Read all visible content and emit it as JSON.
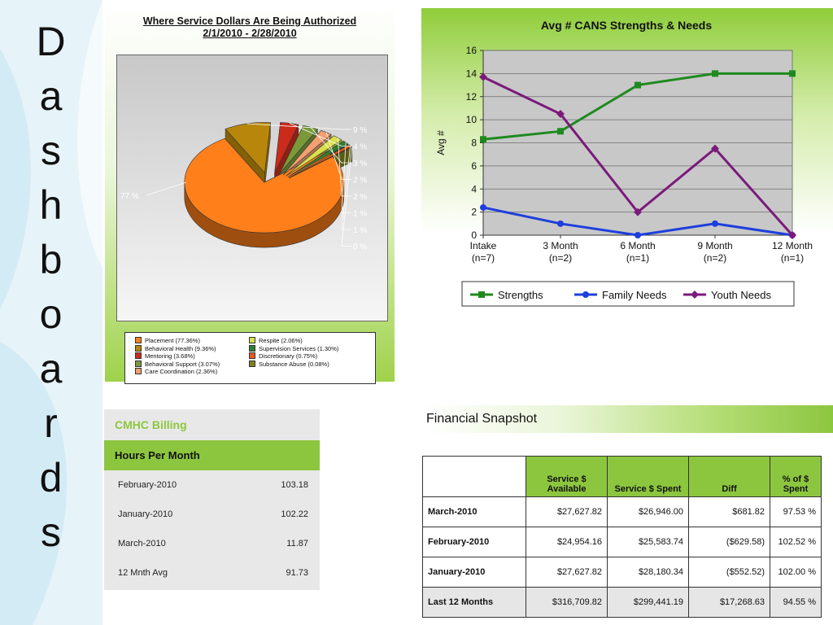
{
  "vertical_title": [
    "D",
    "a",
    "s",
    "h",
    "b",
    "o",
    "a",
    "r",
    "d",
    "s"
  ],
  "colors": {
    "accent_green": "#8cc63f",
    "strengths": "#1e8a1e",
    "family": "#1e3fdc",
    "youth": "#7b1a7b"
  },
  "chart_data": [
    {
      "type": "pie",
      "title_lines": [
        "Where Service Dollars Are Being Authorized",
        "2/1/2010 - 2/28/2010"
      ],
      "slices": [
        {
          "label": "Placement (77.36%)",
          "value": 77.36,
          "display": "77 %",
          "color": "#ff7f1a"
        },
        {
          "label": "Behavioral Health (9.36%)",
          "value": 9.36,
          "display": "9 %",
          "color": "#b8860b"
        },
        {
          "label": "Mentoring (3.68%)",
          "value": 3.68,
          "display": "4 %",
          "color": "#cc2a1a"
        },
        {
          "label": "Behavioral Support (3.07%)",
          "value": 3.07,
          "display": "3 %",
          "color": "#7a9a3a"
        },
        {
          "label": "Care Coordination (2.36%)",
          "value": 2.36,
          "display": "2 %",
          "color": "#f4a070"
        },
        {
          "label": "Respite (2.06%)",
          "value": 2.06,
          "display": "2 %",
          "color": "#d8e04a"
        },
        {
          "label": "Supervision Services (1.30%)",
          "value": 1.3,
          "display": "1 %",
          "color": "#2e7d2e"
        },
        {
          "label": "Discretionary (0.75%)",
          "value": 0.75,
          "display": "1 %",
          "color": "#e8581a"
        },
        {
          "label": "Substance Abuse (0.08%)",
          "value": 0.08,
          "display": "0 %",
          "color": "#808020"
        }
      ]
    },
    {
      "type": "line",
      "title": "Avg # CANS Strengths & Needs",
      "ylabel": "Avg #",
      "ylim": [
        0,
        16
      ],
      "yticks": [
        0,
        2,
        4,
        6,
        8,
        10,
        12,
        14,
        16
      ],
      "categories": [
        {
          "line1": "Intake",
          "line2": "(n=7)"
        },
        {
          "line1": "3 Month",
          "line2": "(n=2)"
        },
        {
          "line1": "6 Month",
          "line2": "(n=1)"
        },
        {
          "line1": "9 Month",
          "line2": "(n=2)"
        },
        {
          "line1": "12 Month",
          "line2": "(n=1)"
        }
      ],
      "series": [
        {
          "name": "Strengths",
          "values": [
            8.3,
            9.0,
            13.0,
            14.0,
            14.0
          ],
          "color": "#1e8a1e",
          "marker": "square"
        },
        {
          "name": "Family Needs",
          "values": [
            2.4,
            1.0,
            0.0,
            1.0,
            0.0
          ],
          "color": "#1e3fdc",
          "marker": "circle"
        },
        {
          "name": "Youth Needs",
          "values": [
            13.7,
            10.5,
            2.0,
            7.5,
            0.0
          ],
          "color": "#7b1a7b",
          "marker": "diamond"
        }
      ],
      "legend_position": "bottom",
      "grid": true
    }
  ],
  "billing": {
    "title": "CMHC Billing",
    "header": "Hours Per Month",
    "rows": [
      {
        "label": "February-2010",
        "value": "103.18"
      },
      {
        "label": "January-2010",
        "value": "102.22"
      },
      {
        "label": "March-2010",
        "value": "11.87"
      },
      {
        "label": "12 Mnth Avg",
        "value": "91.73"
      }
    ]
  },
  "financial": {
    "title": "Financial Snapshot",
    "headers": [
      "",
      "Service $ Available",
      "Service $ Spent",
      "Diff",
      "% of $ Spent"
    ],
    "rows": [
      {
        "label": "March-2010",
        "available": "$27,627.82",
        "spent": "$26,946.00",
        "diff": "$681.82",
        "pct": "97.53 %"
      },
      {
        "label": "February-2010",
        "available": "$24,954.16",
        "spent": "$25,583.74",
        "diff": "($629.58)",
        "pct": "102.52 %"
      },
      {
        "label": "January-2010",
        "available": "$27,627.82",
        "spent": "$28,180.34",
        "diff": "($552.52)",
        "pct": "102.00 %"
      },
      {
        "label": "Last 12 Months",
        "available": "$316,709.82",
        "spent": "$299,441.19",
        "diff": "$17,268.63",
        "pct": "94.55 %"
      }
    ]
  }
}
